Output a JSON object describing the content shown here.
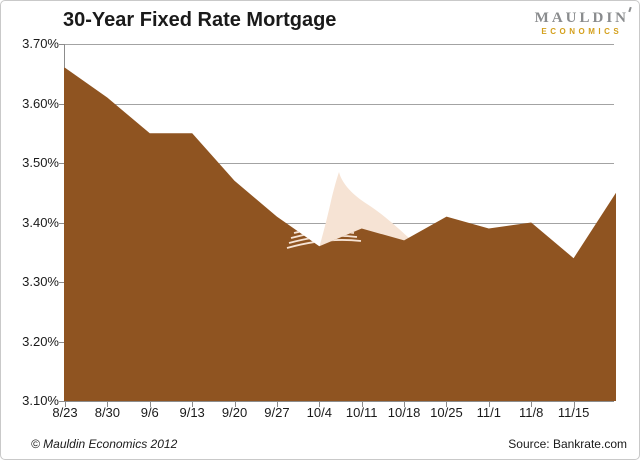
{
  "header": {
    "title": "30-Year Fixed Rate Mortgage",
    "logo": {
      "line1": "MAULDIN",
      "line2": "ECONOMICS",
      "gray": "#8a8c8e",
      "gold": "#d4a01c"
    }
  },
  "footer": {
    "copyright": "© Mauldin Economics 2012",
    "source": "Source: Bankrate.com"
  },
  "chart_data": {
    "type": "area",
    "title": "30-Year Fixed Rate Mortgage",
    "x_labels": [
      "8/23",
      "8/30",
      "9/6",
      "9/13",
      "9/20",
      "9/27",
      "10/4",
      "10/11",
      "10/18",
      "10/25",
      "11/1",
      "11/8",
      "11/15"
    ],
    "values": [
      3.66,
      3.61,
      3.55,
      3.55,
      3.47,
      3.41,
      3.36,
      3.39,
      3.37,
      3.41,
      3.39,
      3.4,
      3.34,
      3.45
    ],
    "values_note": "14th value extends one unlabeled week past 11/15 to the plot's right edge",
    "ylim": [
      3.1,
      3.7
    ],
    "y_ticks": [
      "3.70%",
      "3.60%",
      "3.50%",
      "3.40%",
      "3.30%",
      "3.20%",
      "3.10%"
    ],
    "grid": "horizontal",
    "legend": "none",
    "area_color": "#8F5421",
    "grid_color": "#a3a3a3",
    "axis_color": "#8c8c8c",
    "decoration": {
      "name": "shark-fin-watermark",
      "color": "#F6E3D4"
    }
  }
}
